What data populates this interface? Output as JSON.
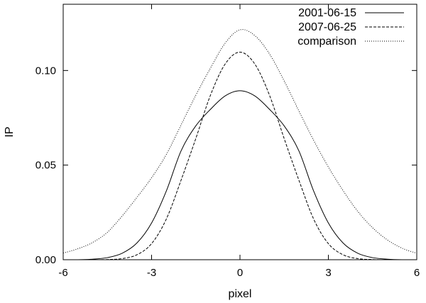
{
  "chart_data": {
    "type": "line",
    "title": "",
    "xlabel": "pixel",
    "ylabel": "IP",
    "xlim": [
      -6,
      6
    ],
    "ylim": [
      0,
      0.135
    ],
    "xticks": [
      -6,
      -3,
      0,
      3,
      6
    ],
    "xtick_labels": [
      "-6",
      "-3",
      "0",
      "3",
      "6"
    ],
    "yticks": [
      0,
      0.05,
      0.1
    ],
    "ytick_labels": [
      "0.00",
      "0.05",
      "0.10"
    ],
    "grid": false,
    "legend_position": "top-right",
    "series": [
      {
        "name": "2001-06-15",
        "line_style": "solid",
        "x": [
          -6,
          -5.5,
          -5,
          -4.5,
          -4,
          -3.5,
          -3,
          -2.5,
          -2,
          -1.5,
          -1,
          -0.5,
          0,
          0.5,
          1,
          1.5,
          2,
          2.5,
          3,
          3.5,
          4,
          4.5,
          5,
          5.5,
          6
        ],
        "y": [
          0.0,
          0.0,
          0.0003,
          0.0011,
          0.0034,
          0.0088,
          0.0194,
          0.0363,
          0.0575,
          0.0707,
          0.0795,
          0.0866,
          0.0893,
          0.0866,
          0.0795,
          0.0707,
          0.0575,
          0.0363,
          0.0194,
          0.0088,
          0.0034,
          0.0011,
          0.0003,
          0.0,
          0.0
        ]
      },
      {
        "name": "2007-06-25",
        "line_style": "dashed",
        "x": [
          -6,
          -5.5,
          -5,
          -4.5,
          -4,
          -3.5,
          -3,
          -2.5,
          -2,
          -1.5,
          -1,
          -0.5,
          0,
          0.5,
          1,
          1.5,
          2,
          2.5,
          3,
          3.5,
          4,
          4.5,
          5,
          5.5,
          6
        ],
        "y": [
          0.0,
          0.0,
          0.0,
          0.0001,
          0.0006,
          0.0026,
          0.0085,
          0.0215,
          0.042,
          0.064,
          0.087,
          0.1035,
          0.1097,
          0.1035,
          0.087,
          0.064,
          0.042,
          0.0215,
          0.0085,
          0.0026,
          0.0006,
          0.0001,
          0.0,
          0.0,
          0.0
        ]
      },
      {
        "name": "comparison",
        "line_style": "dotted",
        "x": [
          -6,
          -5.5,
          -5,
          -4.5,
          -4,
          -3.5,
          -3,
          -2.5,
          -2,
          -1.5,
          -1,
          -0.5,
          0,
          0.5,
          1,
          1.5,
          2,
          2.5,
          3,
          3.5,
          4,
          4.5,
          5,
          5.5,
          6
        ],
        "y": [
          0.0035,
          0.0058,
          0.0091,
          0.0145,
          0.0231,
          0.0329,
          0.0433,
          0.0556,
          0.0712,
          0.0869,
          0.1013,
          0.1145,
          0.1215,
          0.1185,
          0.1088,
          0.0945,
          0.0786,
          0.0631,
          0.049,
          0.0365,
          0.0255,
          0.0169,
          0.0105,
          0.0061,
          0.0034
        ]
      }
    ]
  }
}
